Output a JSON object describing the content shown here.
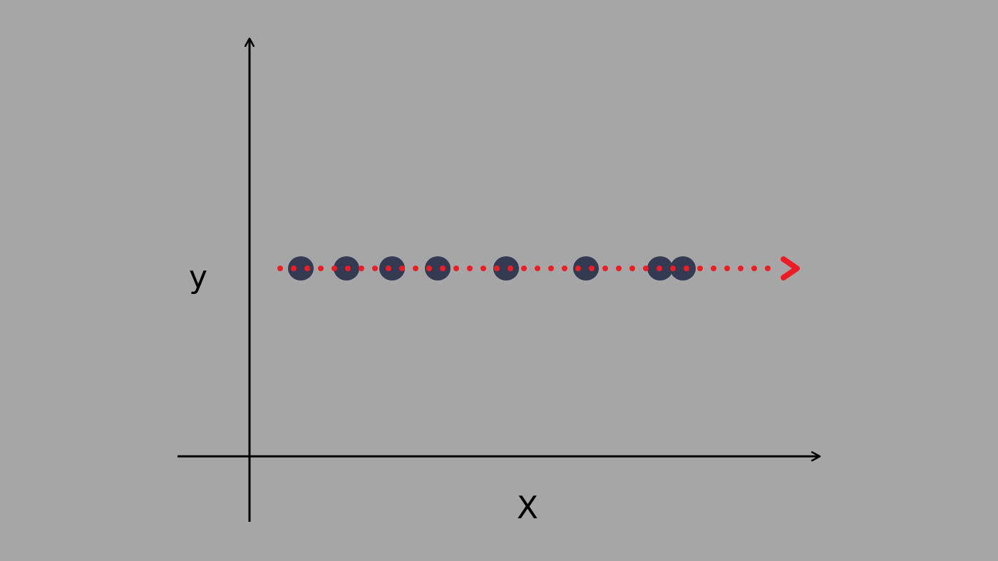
{
  "labels": {
    "y_axis": "y",
    "x_axis": "X"
  },
  "colors": {
    "background": "#a6a6a6",
    "axis": "#000000",
    "point_fill": "#343a52",
    "arrow": "#ee1c25"
  },
  "chart_data": {
    "type": "scatter",
    "xlabel": "X",
    "ylabel": "y",
    "grid": false,
    "note_shape": "points lie on a single horizontal line; a red dotted arrow runs through them pointing right",
    "points_x_fraction_of_axis": [
      0.09,
      0.17,
      0.25,
      0.33,
      0.45,
      0.59,
      0.72,
      0.76
    ]
  }
}
